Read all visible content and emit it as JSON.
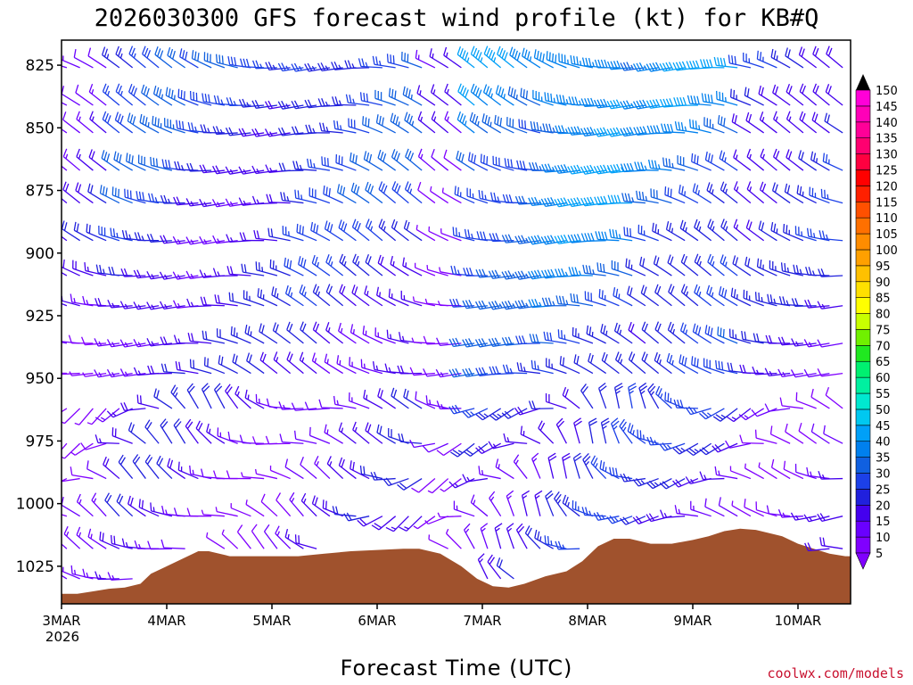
{
  "chart_data": {
    "type": "wind-barb-profile",
    "title": "2026030300 GFS forecast wind profile (kt) for KB#Q",
    "xlabel": "Forecast Time (UTC)",
    "credit": "coolwx.com/models",
    "x_ticks": [
      "3MAR",
      "4MAR",
      "5MAR",
      "6MAR",
      "7MAR",
      "8MAR",
      "9MAR",
      "10MAR"
    ],
    "x_year": "2026",
    "x_range_days": [
      0,
      7.5
    ],
    "y_ticks": [
      825,
      850,
      875,
      900,
      925,
      950,
      975,
      1000,
      1025
    ],
    "y_tick_labels": [
      "825",
      "850",
      "875",
      "900",
      "925",
      "950",
      "975",
      "1000",
      "1025"
    ],
    "y_range_hpa": [
      815,
      1040
    ],
    "colorbar_values": [
      5,
      10,
      15,
      20,
      25,
      30,
      35,
      40,
      45,
      50,
      55,
      60,
      65,
      70,
      75,
      80,
      85,
      90,
      95,
      100,
      105,
      110,
      115,
      120,
      125,
      130,
      135,
      140,
      145,
      150
    ],
    "colorbar_labels": [
      "5",
      "10",
      "15",
      "20",
      "25",
      "30",
      "35",
      "40",
      "45",
      "50",
      "55",
      "60",
      "65",
      "70",
      "75",
      "80",
      "85",
      "90",
      "95",
      "100",
      "105",
      "110",
      "115",
      "120",
      "125",
      "130",
      "135",
      "140",
      "145",
      "150"
    ],
    "colorbar_colors": [
      "#8000ff",
      "#6a00ff",
      "#4400ee",
      "#2020dd",
      "#1c40e8",
      "#1060e0",
      "#0080ee",
      "#00a0f8",
      "#00c8f0",
      "#00e8d0",
      "#00f0a0",
      "#00f070",
      "#20e820",
      "#70f000",
      "#c8ff00",
      "#ffff00",
      "#ffe000",
      "#ffc000",
      "#ffa000",
      "#ff8c00",
      "#ff7000",
      "#ff5000",
      "#ff2000",
      "#ff0000",
      "#ff0040",
      "#ff0070",
      "#ff0098",
      "#ff00b8",
      "#ff00d8",
      "#ff00ff"
    ],
    "colorbar_overflow_color": "#000000",
    "terrain_color": "#a0522d",
    "terrain_surface_pressure_hpa": [
      [
        0.0,
        1036
      ],
      [
        0.15,
        1036
      ],
      [
        0.3,
        1035
      ],
      [
        0.45,
        1034
      ],
      [
        0.6,
        1033.5
      ],
      [
        0.75,
        1032
      ],
      [
        0.85,
        1028
      ],
      [
        1.0,
        1025
      ],
      [
        1.1,
        1023
      ],
      [
        1.2,
        1021
      ],
      [
        1.3,
        1019
      ],
      [
        1.4,
        1019
      ],
      [
        1.6,
        1021
      ],
      [
        1.75,
        1021
      ],
      [
        2.0,
        1021
      ],
      [
        2.25,
        1021
      ],
      [
        2.5,
        1020
      ],
      [
        2.75,
        1019
      ],
      [
        3.0,
        1018.5
      ],
      [
        3.25,
        1018
      ],
      [
        3.4,
        1018
      ],
      [
        3.6,
        1020
      ],
      [
        3.8,
        1025
      ],
      [
        3.95,
        1030
      ],
      [
        4.1,
        1033
      ],
      [
        4.25,
        1033.5
      ],
      [
        4.4,
        1032
      ],
      [
        4.6,
        1029
      ],
      [
        4.8,
        1027
      ],
      [
        4.95,
        1023
      ],
      [
        5.1,
        1017
      ],
      [
        5.25,
        1014
      ],
      [
        5.4,
        1014
      ],
      [
        5.6,
        1016
      ],
      [
        5.8,
        1016
      ],
      [
        6.0,
        1014.5
      ],
      [
        6.15,
        1013
      ],
      [
        6.3,
        1011
      ],
      [
        6.45,
        1010
      ],
      [
        6.6,
        1010.5
      ],
      [
        6.75,
        1012
      ],
      [
        6.85,
        1013
      ],
      [
        7.0,
        1016
      ],
      [
        7.15,
        1018
      ],
      [
        7.3,
        1020
      ],
      [
        7.45,
        1021
      ],
      [
        7.5,
        1021
      ]
    ],
    "wind_columns_day_spacing": 0.125,
    "wind_levels_hpa": [
      826,
      841,
      852,
      867,
      880,
      895,
      909,
      921,
      936,
      948,
      962,
      976,
      990,
      1005,
      1018,
      1030
    ],
    "wind_speed_kt_by_regime": {
      "3MAR": 15,
      "3MAR-mid": 28,
      "4MAR": 30,
      "5MAR": 22,
      "6MAR": 25,
      "6MAR-late": 10,
      "7MAR": 38,
      "8MAR": 35,
      "9MAR": 30,
      "10MAR": 20
    },
    "wind_direction": "northwesterly to westerly, backing to southerly near the surface at times"
  }
}
